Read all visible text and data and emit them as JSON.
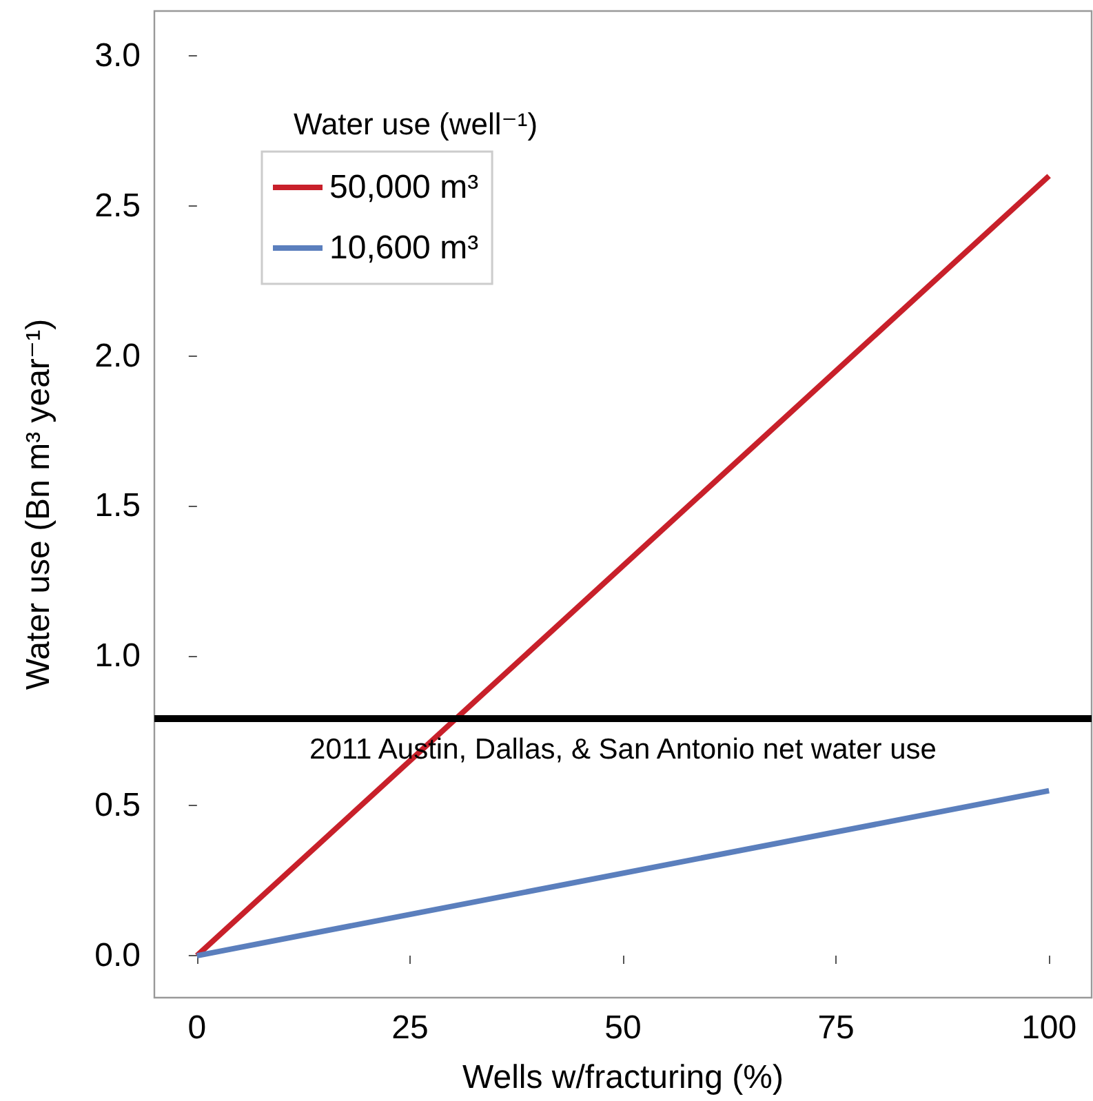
{
  "chart_data": {
    "type": "line",
    "xlabel": "Wells w/fracturing (%)",
    "ylabel": "Water use (Bn m³ year⁻¹)",
    "legend_title": "Water use (well⁻¹)",
    "x": [
      0,
      100
    ],
    "series": [
      {
        "name": "50,000 m³",
        "color": "#c8202a",
        "values": [
          0,
          2.6
        ]
      },
      {
        "name": "10,600 m³",
        "color": "#5b7fbd",
        "values": [
          0,
          0.55
        ]
      }
    ],
    "xlim": [
      -5,
      105
    ],
    "xticks": [
      0,
      25,
      50,
      75,
      100
    ],
    "ylim": [
      -0.14,
      3.15
    ],
    "yticks": [
      {
        "value": 0,
        "label": "0.0"
      },
      {
        "value": 0.5,
        "label": "0.5"
      },
      {
        "value": 1,
        "label": "1.0"
      },
      {
        "value": 1.5,
        "label": "1.5"
      },
      {
        "value": 2,
        "label": "2.0"
      },
      {
        "value": 2.5,
        "label": "2.5"
      },
      {
        "value": 3,
        "label": "3.0"
      }
    ],
    "ref_lines": [
      {
        "axis": "y",
        "value": 0.79,
        "label": "2011 Austin, Dallas, & San Antonio net water use",
        "color": "#000000"
      }
    ],
    "grid": false,
    "legend": "top left",
    "marker": "none",
    "line_style": "solid"
  }
}
